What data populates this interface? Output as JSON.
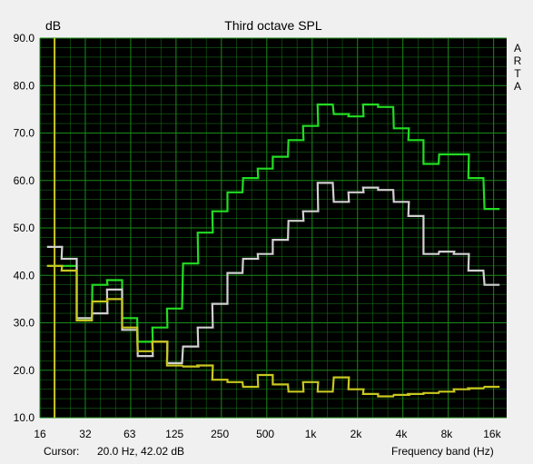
{
  "chart_data": {
    "type": "line",
    "title": "Third octave SPL",
    "ylabel": "dB",
    "xlabel": "Frequency band (Hz)",
    "y_scale": "linear",
    "x_scale": "log",
    "ylim": [
      10,
      90
    ],
    "xlim": [
      16,
      20000
    ],
    "grid": true,
    "background_color": "#000000",
    "grid_color": "#1a8a1a",
    "yticks": [
      "90.0",
      "80.0",
      "70.0",
      "60.0",
      "50.0",
      "40.0",
      "30.0",
      "20.0",
      "10.0"
    ],
    "xticks": [
      {
        "label": "16",
        "value": 16
      },
      {
        "label": "32",
        "value": 32
      },
      {
        "label": "63",
        "value": 63
      },
      {
        "label": "125",
        "value": 125
      },
      {
        "label": "250",
        "value": 250
      },
      {
        "label": "500",
        "value": 500
      },
      {
        "label": "1k",
        "value": 1000
      },
      {
        "label": "2k",
        "value": 2000
      },
      {
        "label": "4k",
        "value": 4000
      },
      {
        "label": "8k",
        "value": 8000
      },
      {
        "label": "16k",
        "value": 16000
      }
    ],
    "bands": [
      20,
      25,
      31.5,
      40,
      50,
      63,
      80,
      100,
      125,
      160,
      200,
      250,
      315,
      400,
      500,
      630,
      800,
      1000,
      1250,
      1600,
      2000,
      2500,
      3150,
      4000,
      5000,
      6300,
      8000,
      10000,
      12500,
      16000
    ],
    "series": [
      {
        "color": "#22dd22",
        "values": [
          42,
          42,
          30.5,
          38,
          39,
          31,
          26,
          29,
          33,
          42.5,
          49,
          53.5,
          57.5,
          60.5,
          62.5,
          65,
          68.5,
          71.5,
          76,
          74,
          73.5,
          76,
          75.5,
          71,
          68.5,
          63.5,
          65.5,
          65.5,
          60.5,
          54
        ]
      },
      {
        "color": "#d0d0d0",
        "values": [
          46,
          43.5,
          31,
          32,
          37,
          28.5,
          23,
          26,
          21.5,
          25,
          29,
          34,
          40.5,
          43.5,
          44.5,
          47.5,
          51.5,
          53.5,
          59.5,
          55.5,
          57.5,
          58.5,
          58,
          55.5,
          52.5,
          44.5,
          45,
          44.5,
          41,
          38
        ]
      },
      {
        "color": "#c8c820",
        "values": [
          42,
          41,
          30.5,
          34.5,
          35,
          29,
          24,
          26,
          21,
          20.8,
          21,
          18,
          17.5,
          16.5,
          19,
          17,
          15.5,
          17.5,
          15.5,
          18.5,
          16,
          15,
          14.5,
          14.8,
          15,
          15.2,
          15.5,
          16,
          16.2,
          16.5
        ]
      }
    ],
    "cursor": {
      "frequency_hz": 20.0,
      "level_db": 42.02,
      "color": "#c8c820"
    }
  },
  "side_label": [
    "A",
    "R",
    "T",
    "A"
  ],
  "footer": {
    "cursor_label": "Cursor:",
    "cursor_value": "20.0 Hz, 42.02 dB"
  }
}
